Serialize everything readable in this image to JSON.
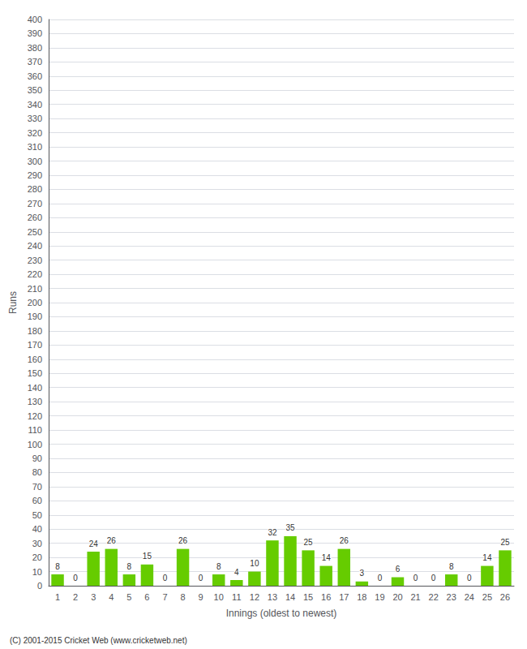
{
  "chart_data": {
    "type": "bar",
    "xlabel": "Innings (oldest to newest)",
    "ylabel": "Runs",
    "categories": [
      "1",
      "2",
      "3",
      "4",
      "5",
      "6",
      "7",
      "8",
      "9",
      "10",
      "11",
      "12",
      "13",
      "14",
      "15",
      "16",
      "17",
      "18",
      "19",
      "20",
      "21",
      "22",
      "23",
      "24",
      "25",
      "26"
    ],
    "values": [
      8,
      0,
      24,
      26,
      8,
      15,
      0,
      26,
      0,
      8,
      4,
      10,
      32,
      35,
      25,
      14,
      26,
      3,
      0,
      6,
      0,
      0,
      8,
      0,
      14,
      25
    ],
    "color": "#66cc00",
    "ylim": [
      0,
      400
    ],
    "yticks": [
      0,
      10,
      20,
      30,
      40,
      50,
      60,
      70,
      80,
      90,
      100,
      110,
      120,
      130,
      140,
      150,
      160,
      170,
      180,
      190,
      200,
      210,
      220,
      230,
      240,
      250,
      260,
      270,
      280,
      290,
      300,
      310,
      320,
      330,
      340,
      350,
      360,
      370,
      380,
      390,
      400
    ],
    "grid": true,
    "data_labels": true,
    "annotations": [
      "(C) 2001-2015 Cricket Web (www.cricketweb.net)"
    ]
  }
}
